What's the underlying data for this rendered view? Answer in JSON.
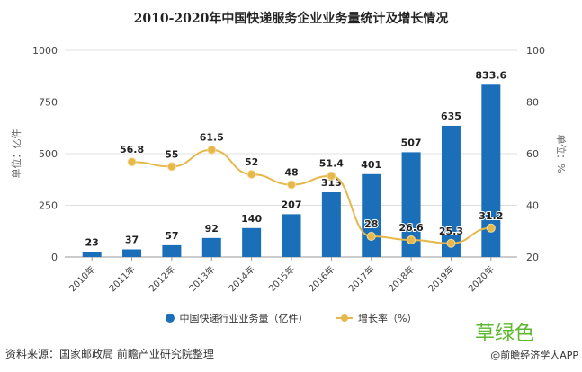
{
  "chart_data": {
    "type": "bar+line",
    "title": "2010-2020年中国快递服务企业业务量统计及增长情况",
    "categories": [
      "2010年",
      "2011年",
      "2012年",
      "2013年",
      "2014年",
      "2015年",
      "2016年",
      "2017年",
      "2018年",
      "2019年",
      "2020年"
    ],
    "series": [
      {
        "name": "中国快递行业业务量（亿件）",
        "type": "bar",
        "axis": "left",
        "color": "#1a6fb8",
        "values": [
          23,
          37,
          57,
          92,
          140,
          207,
          313,
          401,
          507,
          635,
          833.6
        ]
      },
      {
        "name": "增长率（%）",
        "type": "line",
        "axis": "right",
        "color": "#e6b84c",
        "values": [
          null,
          56.8,
          55,
          61.5,
          52,
          48,
          51.4,
          28,
          26.6,
          25.3,
          31.2
        ]
      }
    ],
    "ylabel_left": "单位：亿件",
    "ylabel_right": "单位：%",
    "ylim_left": [
      0,
      1000
    ],
    "yticks_left": [
      0,
      250,
      500,
      750,
      1000
    ],
    "ylim_right": [
      20,
      100
    ],
    "yticks_right": [
      20,
      40,
      60,
      80,
      100
    ],
    "grid": true,
    "legend": "bottom"
  },
  "source": "资料来源：国家邮政局 前瞻产业研究院整理",
  "credit": "@前瞻经济学人APP",
  "stamp": "草绿色"
}
